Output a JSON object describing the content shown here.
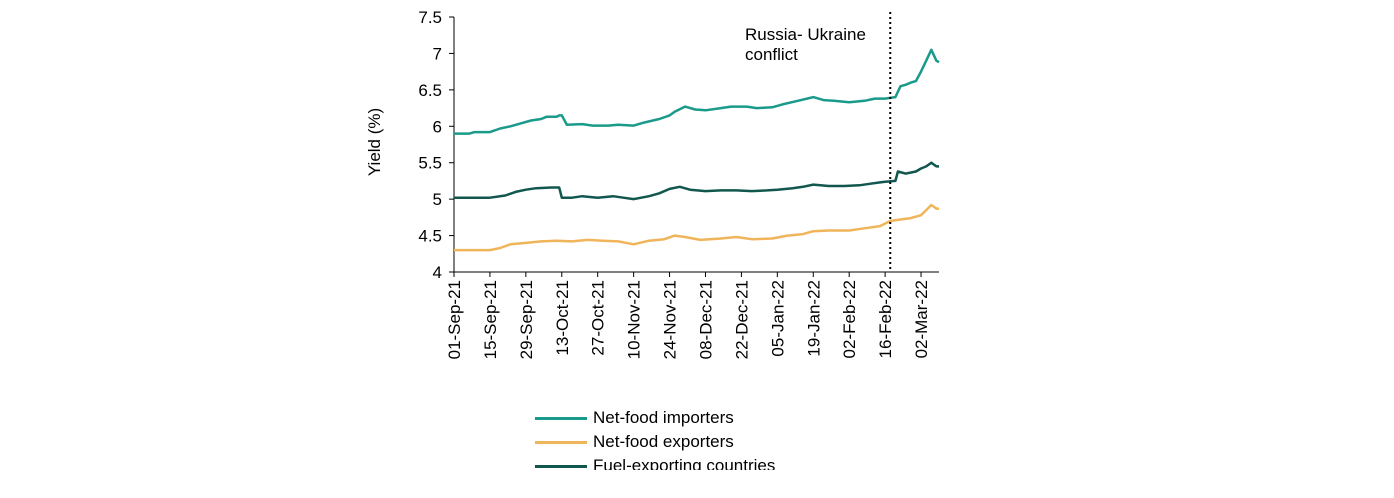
{
  "chart_data": {
    "type": "line",
    "title": "",
    "xlabel": "",
    "ylabel": "Yield (%)",
    "ylim": [
      4,
      7.5
    ],
    "yticks": [
      "4",
      "4.5",
      "5",
      "5.5",
      "6",
      "6.5",
      "7",
      "7.5"
    ],
    "x_range": [
      "2021-09-01",
      "2022-03-14"
    ],
    "xtick_labels": [
      "01-Sep-21",
      "15-Sep-21",
      "29-Sep-21",
      "13-Oct-21",
      "27-Oct-21",
      "10-Nov-21",
      "24-Nov-21",
      "08-Dec-21",
      "22-Dec-21",
      "05-Jan-22",
      "19-Jan-22",
      "02-Feb-22",
      "16-Feb-22",
      "02-Mar-22"
    ],
    "xtick_days": [
      0,
      14,
      28,
      42,
      56,
      70,
      84,
      98,
      112,
      126,
      140,
      154,
      168,
      182
    ],
    "annotation": {
      "label_line1": "Russia- Ukraine",
      "label_line2": "conflict",
      "day": 170
    },
    "series": [
      {
        "name": "Net-food importers",
        "color": "#1a9a8a",
        "points": [
          [
            0,
            5.9
          ],
          [
            6,
            5.9
          ],
          [
            8,
            5.92
          ],
          [
            14,
            5.92
          ],
          [
            18,
            5.97
          ],
          [
            22,
            6.0
          ],
          [
            26,
            6.04
          ],
          [
            30,
            6.08
          ],
          [
            34,
            6.1
          ],
          [
            36,
            6.13
          ],
          [
            40,
            6.13
          ],
          [
            41,
            6.15
          ],
          [
            42,
            6.15
          ],
          [
            44,
            6.02
          ],
          [
            50,
            6.03
          ],
          [
            54,
            6.01
          ],
          [
            60,
            6.01
          ],
          [
            64,
            6.02
          ],
          [
            70,
            6.01
          ],
          [
            74,
            6.05
          ],
          [
            80,
            6.1
          ],
          [
            84,
            6.15
          ],
          [
            86,
            6.2
          ],
          [
            90,
            6.27
          ],
          [
            94,
            6.23
          ],
          [
            98,
            6.22
          ],
          [
            104,
            6.25
          ],
          [
            108,
            6.27
          ],
          [
            114,
            6.27
          ],
          [
            118,
            6.25
          ],
          [
            124,
            6.26
          ],
          [
            128,
            6.3
          ],
          [
            134,
            6.35
          ],
          [
            140,
            6.4
          ],
          [
            144,
            6.36
          ],
          [
            148,
            6.35
          ],
          [
            154,
            6.33
          ],
          [
            160,
            6.35
          ],
          [
            164,
            6.38
          ],
          [
            168,
            6.38
          ],
          [
            172,
            6.4
          ],
          [
            174,
            6.55
          ],
          [
            176,
            6.57
          ],
          [
            178,
            6.6
          ],
          [
            180,
            6.62
          ],
          [
            182,
            6.75
          ],
          [
            184,
            6.9
          ],
          [
            186,
            7.05
          ],
          [
            188,
            6.9
          ],
          [
            189,
            6.88
          ]
        ]
      },
      {
        "name": "Net-food exporters",
        "color": "#f0b45a",
        "points": [
          [
            0,
            4.3
          ],
          [
            14,
            4.3
          ],
          [
            18,
            4.33
          ],
          [
            22,
            4.38
          ],
          [
            28,
            4.4
          ],
          [
            34,
            4.42
          ],
          [
            40,
            4.43
          ],
          [
            46,
            4.42
          ],
          [
            52,
            4.44
          ],
          [
            58,
            4.43
          ],
          [
            64,
            4.42
          ],
          [
            70,
            4.38
          ],
          [
            76,
            4.43
          ],
          [
            82,
            4.45
          ],
          [
            86,
            4.5
          ],
          [
            90,
            4.48
          ],
          [
            96,
            4.44
          ],
          [
            104,
            4.46
          ],
          [
            110,
            4.48
          ],
          [
            116,
            4.45
          ],
          [
            124,
            4.46
          ],
          [
            130,
            4.5
          ],
          [
            136,
            4.52
          ],
          [
            140,
            4.56
          ],
          [
            146,
            4.57
          ],
          [
            154,
            4.57
          ],
          [
            160,
            4.6
          ],
          [
            166,
            4.63
          ],
          [
            170,
            4.7
          ],
          [
            174,
            4.72
          ],
          [
            178,
            4.74
          ],
          [
            182,
            4.78
          ],
          [
            184,
            4.85
          ],
          [
            186,
            4.92
          ],
          [
            188,
            4.87
          ],
          [
            189,
            4.87
          ]
        ]
      },
      {
        "name": "Fuel-exporting countries",
        "color": "#11574e",
        "points": [
          [
            0,
            5.02
          ],
          [
            8,
            5.02
          ],
          [
            14,
            5.02
          ],
          [
            20,
            5.05
          ],
          [
            24,
            5.1
          ],
          [
            28,
            5.13
          ],
          [
            32,
            5.15
          ],
          [
            38,
            5.16
          ],
          [
            41,
            5.16
          ],
          [
            42,
            5.02
          ],
          [
            46,
            5.02
          ],
          [
            50,
            5.04
          ],
          [
            56,
            5.02
          ],
          [
            62,
            5.04
          ],
          [
            66,
            5.02
          ],
          [
            70,
            5.0
          ],
          [
            76,
            5.04
          ],
          [
            80,
            5.08
          ],
          [
            84,
            5.14
          ],
          [
            88,
            5.17
          ],
          [
            92,
            5.13
          ],
          [
            98,
            5.11
          ],
          [
            104,
            5.12
          ],
          [
            110,
            5.12
          ],
          [
            116,
            5.11
          ],
          [
            122,
            5.12
          ],
          [
            126,
            5.13
          ],
          [
            132,
            5.15
          ],
          [
            136,
            5.17
          ],
          [
            140,
            5.2
          ],
          [
            146,
            5.18
          ],
          [
            152,
            5.18
          ],
          [
            158,
            5.19
          ],
          [
            162,
            5.21
          ],
          [
            166,
            5.23
          ],
          [
            168,
            5.24
          ],
          [
            172,
            5.25
          ],
          [
            173,
            5.38
          ],
          [
            176,
            5.35
          ],
          [
            180,
            5.38
          ],
          [
            182,
            5.42
          ],
          [
            184,
            5.45
          ],
          [
            186,
            5.5
          ],
          [
            188,
            5.45
          ],
          [
            189,
            5.45
          ]
        ]
      }
    ]
  }
}
